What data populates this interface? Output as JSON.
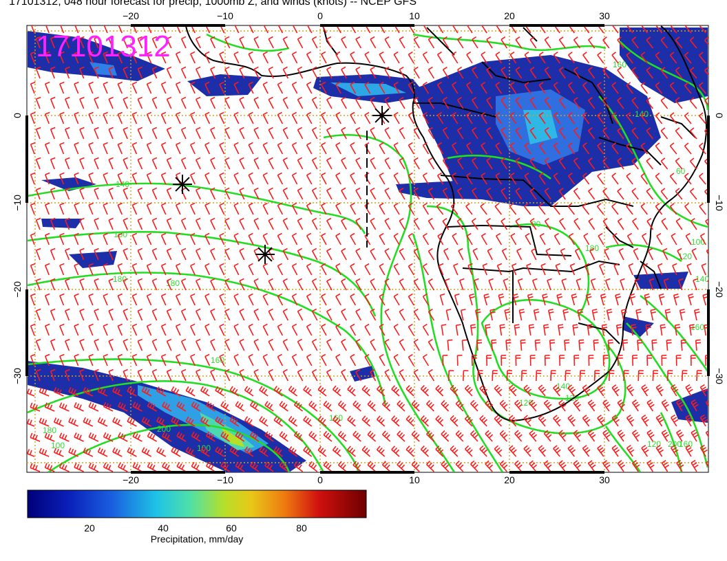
{
  "title": "17101312, 048 hour forecast for precip, 1000mb Z, and winds (knots) -- NCEP GFS",
  "stamp": "17101312",
  "colors": {
    "wind_barb": "#ff1a1a",
    "contour": "#22dd22",
    "coastline": "#000000",
    "grid": "#d4a017",
    "stamp": "#ff22ff"
  },
  "map": {
    "lon_ticks": [
      "−20",
      "−10",
      "0",
      "10",
      "20",
      "30"
    ],
    "lat_ticks": [
      "0",
      "−10",
      "−20",
      "−30"
    ],
    "contour_labels": [
      "140",
      "160",
      "180",
      "180",
      "160",
      "160",
      "140",
      "120",
      "100",
      "80",
      "120",
      "140",
      "160",
      "180",
      "200",
      "200",
      "100",
      "160",
      "120",
      "60",
      "100",
      "120",
      "140",
      "160",
      "180"
    ],
    "markers": [
      "storm-marker-1",
      "storm-marker-2",
      "storm-marker-3"
    ]
  },
  "colorbar": {
    "ticks": [
      "20",
      "40",
      "60",
      "80"
    ],
    "label": "Precipitation, mm/day"
  }
}
